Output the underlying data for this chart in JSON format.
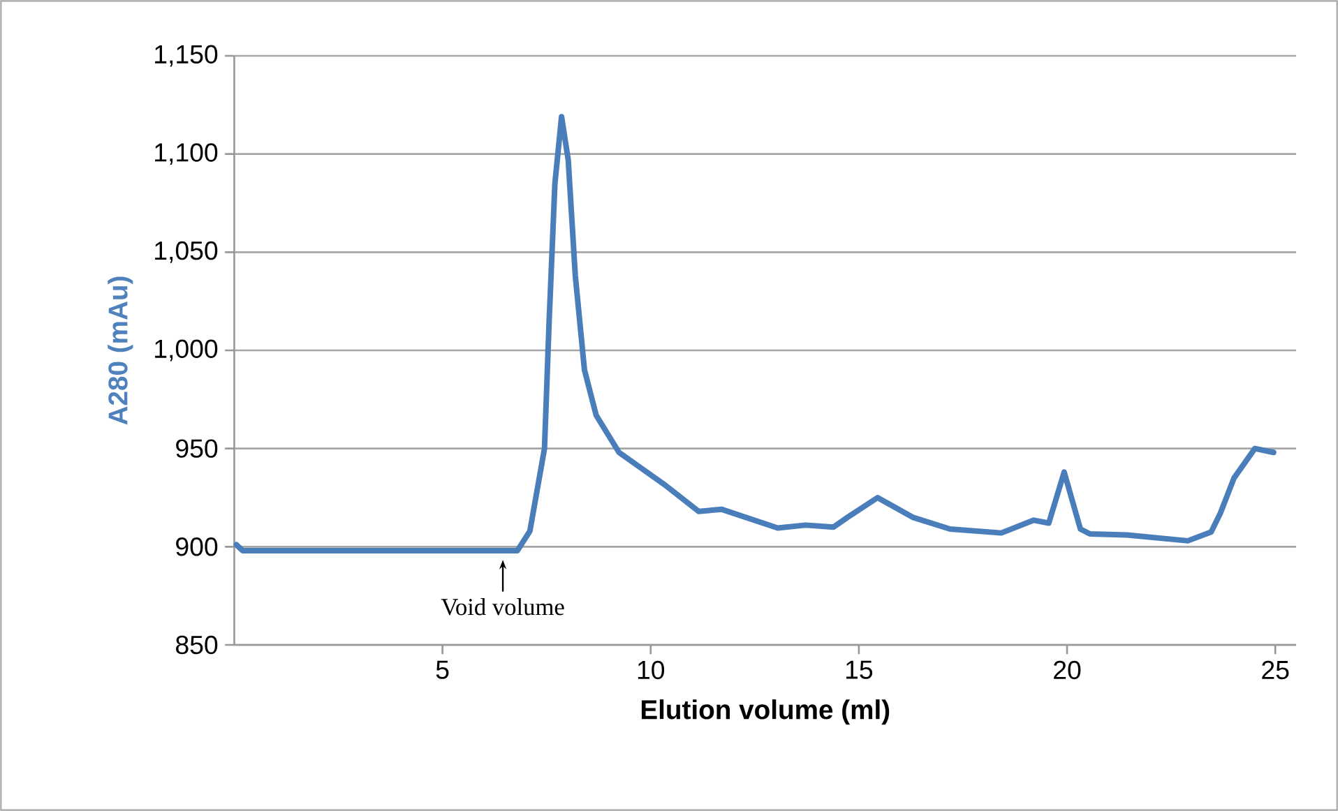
{
  "chart_data": {
    "type": "line",
    "xlabel": "Elution volume (ml)",
    "ylabel": "A280 (mAu)",
    "xlim": [
      0,
      25.5
    ],
    "xticks": [
      5,
      10,
      15,
      20,
      25
    ],
    "ylim": [
      850,
      1150
    ],
    "yticks": [
      {
        "value": 850,
        "label": "850"
      },
      {
        "value": 900,
        "label": "900"
      },
      {
        "value": 950,
        "label": "950"
      },
      {
        "value": 1000,
        "label": "1,000"
      },
      {
        "value": 1050,
        "label": "1,050"
      },
      {
        "value": 1100,
        "label": "1,100"
      },
      {
        "value": 1150,
        "label": "1,150"
      }
    ],
    "grid": "y",
    "marker": "none",
    "line_style": "solid",
    "annotations": [
      {
        "text": "Void volume",
        "x": 6.45,
        "y": 898
      }
    ],
    "series": [
      {
        "color": "#4a7ebb",
        "x": [
          0.05,
          0.2,
          1,
          3,
          5,
          6.8,
          7.1,
          7.45,
          7.56,
          7.7,
          7.86,
          8.02,
          8.19,
          8.41,
          8.69,
          9.24,
          10.37,
          11.15,
          11.71,
          13.05,
          13.72,
          14.39,
          14.73,
          15.45,
          16.29,
          17.19,
          18.42,
          19.2,
          19.56,
          19.93,
          20.32,
          20.55,
          21.44,
          22.9,
          23.46,
          23.68,
          24.01,
          24.51,
          24.96
        ],
        "values": [
          901,
          898,
          898,
          898,
          898,
          898,
          908,
          950,
          1014,
          1085,
          1119,
          1097,
          1038,
          990,
          967,
          948,
          931,
          918,
          919,
          909.5,
          911,
          910,
          915,
          925,
          915,
          909,
          907,
          913.5,
          912,
          938,
          909,
          906.5,
          906,
          903,
          907.5,
          917,
          935,
          950,
          948
        ]
      }
    ]
  }
}
